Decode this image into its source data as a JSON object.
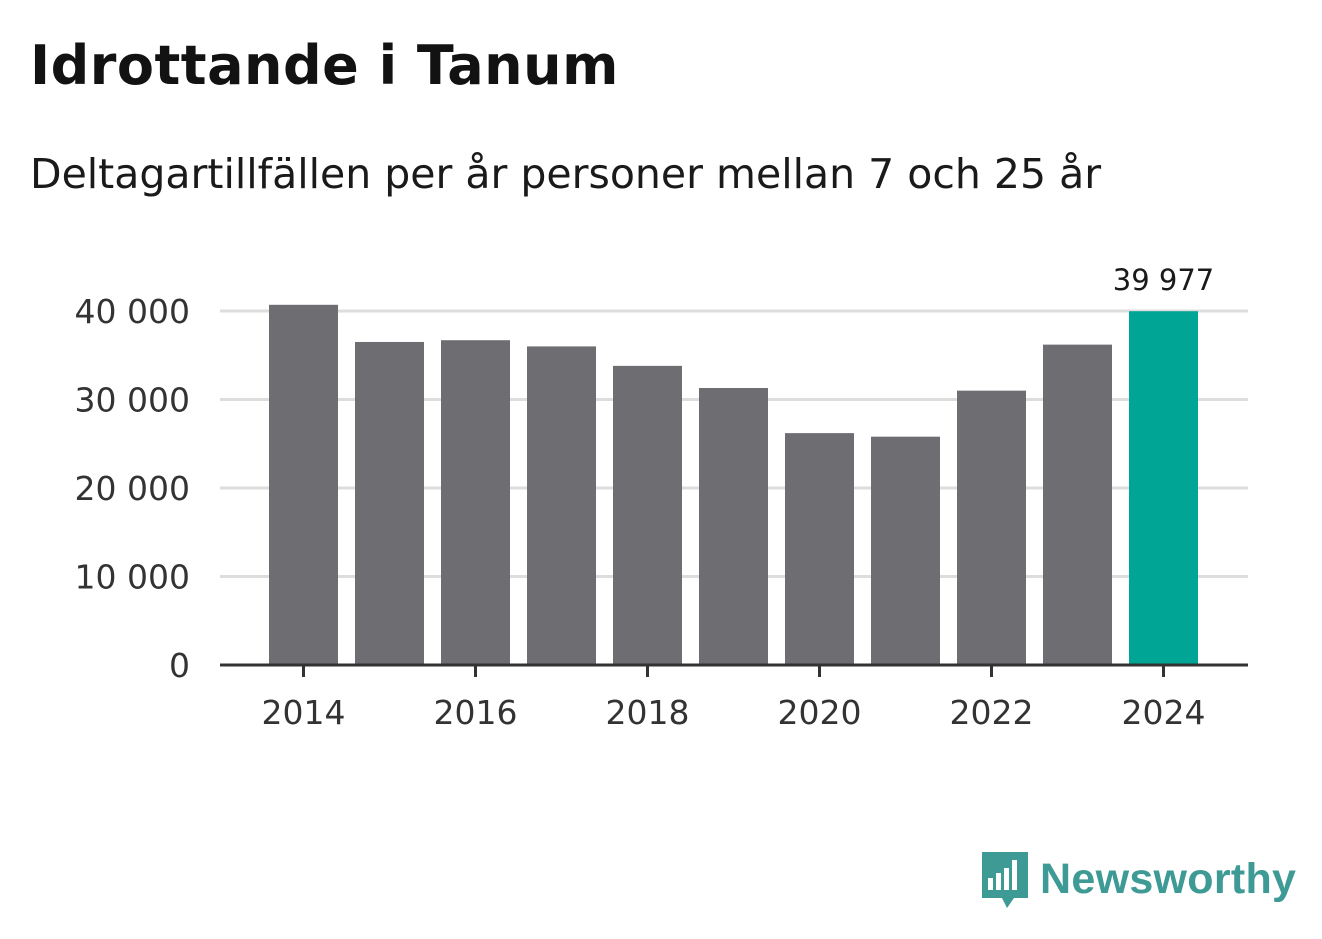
{
  "header": {
    "title": "Idrottande i Tanum",
    "subtitle": "Deltagartillfällen per år personer mellan 7 och 25 år"
  },
  "chart_data": {
    "type": "bar",
    "categories": [
      "2014",
      "2015",
      "2016",
      "2017",
      "2018",
      "2019",
      "2020",
      "2021",
      "2022",
      "2023",
      "2024"
    ],
    "values": [
      40700,
      36500,
      36700,
      36000,
      33800,
      31300,
      26200,
      25800,
      31000,
      36200,
      39977
    ],
    "x_tick_labels": [
      "2014",
      "2016",
      "2018",
      "2020",
      "2022",
      "2024"
    ],
    "y_ticks": [
      0,
      10000,
      20000,
      30000,
      40000
    ],
    "y_tick_labels": [
      "0",
      "10 000",
      "20 000",
      "30 000",
      "40 000"
    ],
    "ylim": [
      0,
      40000
    ],
    "highlight_index": 10,
    "highlight_label": "39 977",
    "title": "Idrottande i Tanum",
    "xlabel": "",
    "ylabel": "",
    "grid": true,
    "colors": {
      "bar": "#6e6d72",
      "highlight": "#00a596",
      "grid": "#dddddd",
      "axis": "#333333"
    }
  },
  "brand": {
    "name": "Newsworthy",
    "icon": "newsworthy-logo-icon",
    "color": "#3d9a95"
  }
}
